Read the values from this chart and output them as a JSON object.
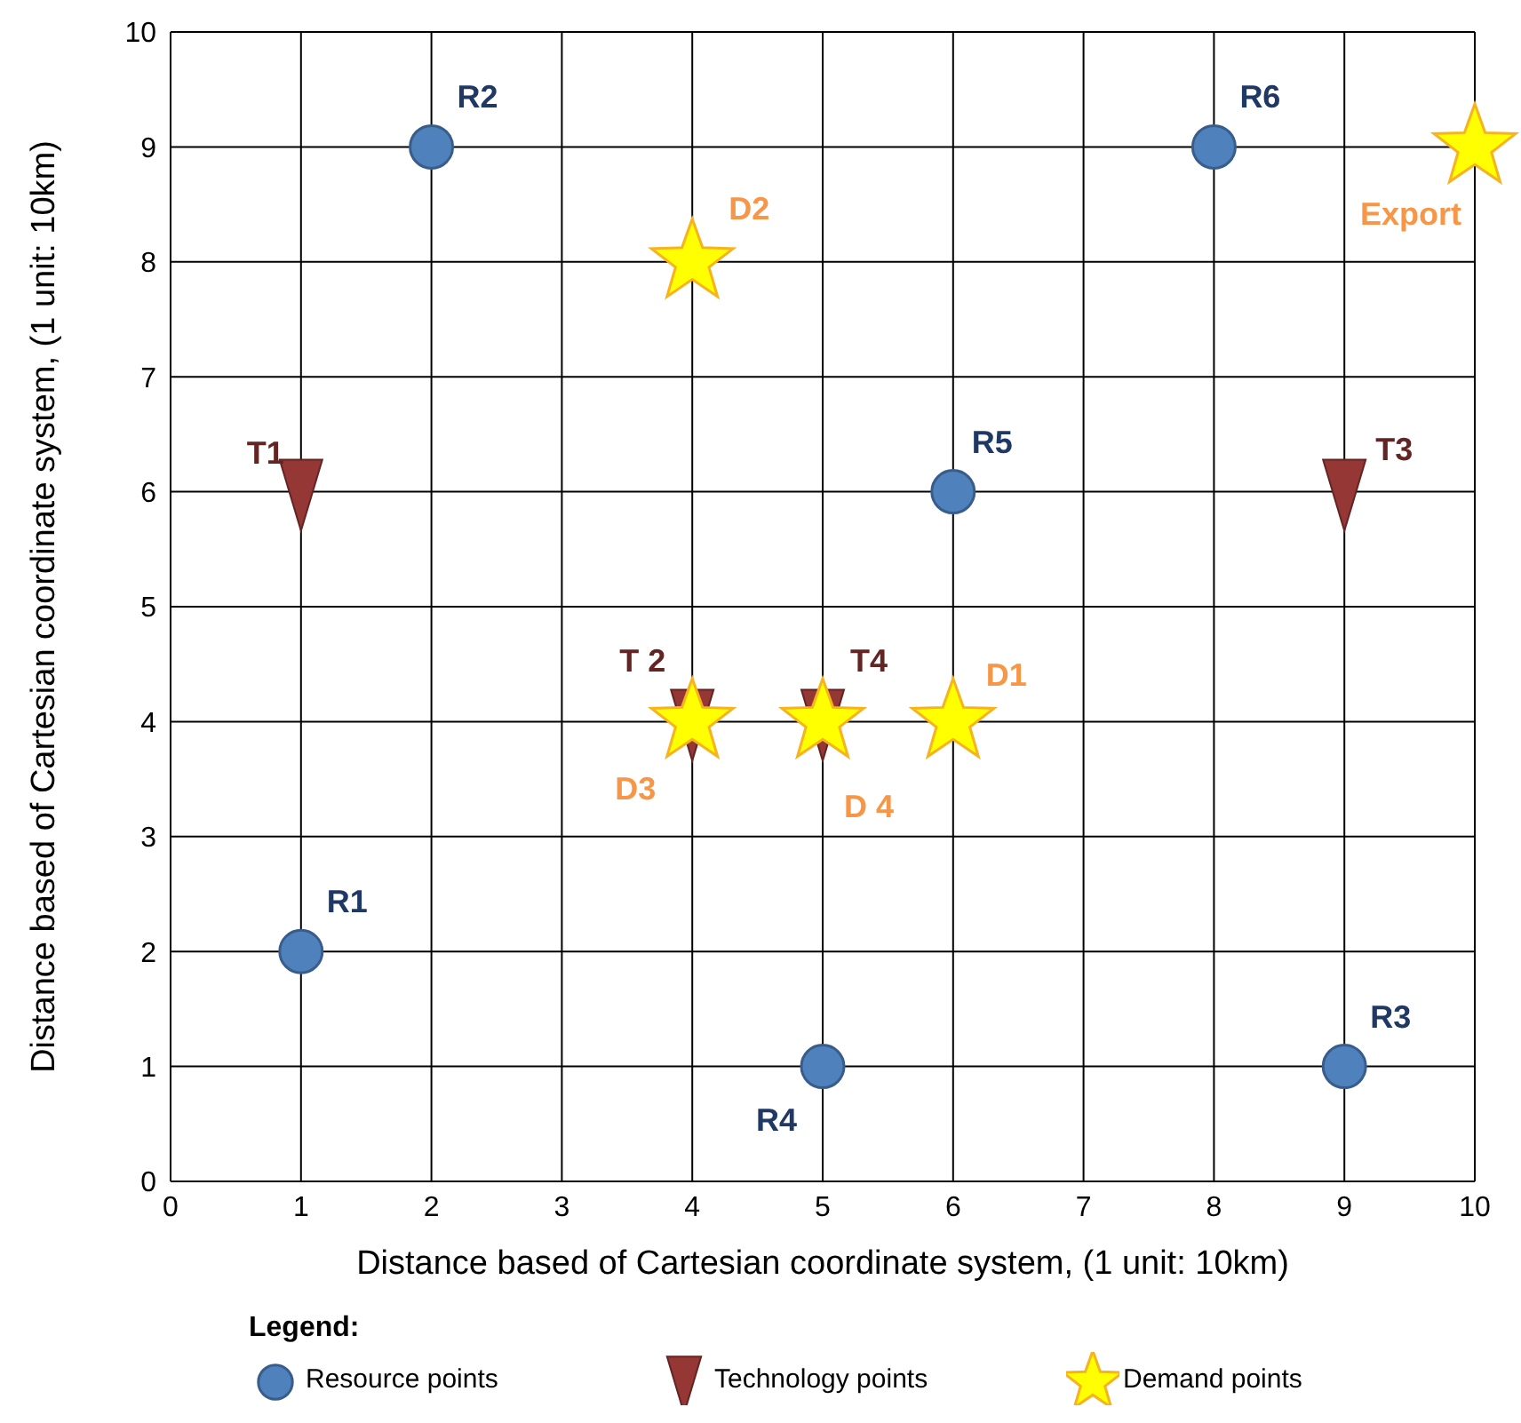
{
  "chart_data": {
    "type": "scatter",
    "xlabel": "Distance based of Cartesian coordinate system, (1 unit: 10km)",
    "ylabel": "Distance based of Cartesian coordinate system, (1 unit: 10km)",
    "xlim": [
      0,
      10
    ],
    "ylim": [
      0,
      10
    ],
    "xticks": [
      0,
      1,
      2,
      3,
      4,
      5,
      6,
      7,
      8,
      9,
      10
    ],
    "yticks": [
      0,
      1,
      2,
      3,
      4,
      5,
      6,
      7,
      8,
      9,
      10
    ],
    "grid": true,
    "legend": "bottom",
    "legend_title": "Legend:",
    "series": [
      {
        "name": "Resource points",
        "color": "#4f81bd",
        "marker": "circle",
        "x": [
          1,
          2,
          9,
          5,
          6,
          8
        ],
        "values": [
          2,
          9,
          1,
          1,
          6,
          9
        ],
        "value_labels": [
          "R1",
          "R2",
          "R3",
          "R4",
          "R5",
          "R6"
        ]
      },
      {
        "name": "Technology points",
        "color": "#953735",
        "marker": "triangle",
        "x": [
          1,
          4,
          9,
          5
        ],
        "values": [
          6,
          4,
          6,
          4
        ],
        "value_labels": [
          "T1",
          "T 2",
          "T3",
          "T4"
        ]
      },
      {
        "name": "Demand points",
        "color": "#ffff00",
        "marker": "star",
        "x": [
          6,
          4,
          4,
          5,
          10
        ],
        "values": [
          4,
          8,
          4,
          4,
          9
        ],
        "value_labels": [
          "D1",
          "D2",
          "D3",
          "D 4",
          "Export"
        ]
      }
    ]
  }
}
